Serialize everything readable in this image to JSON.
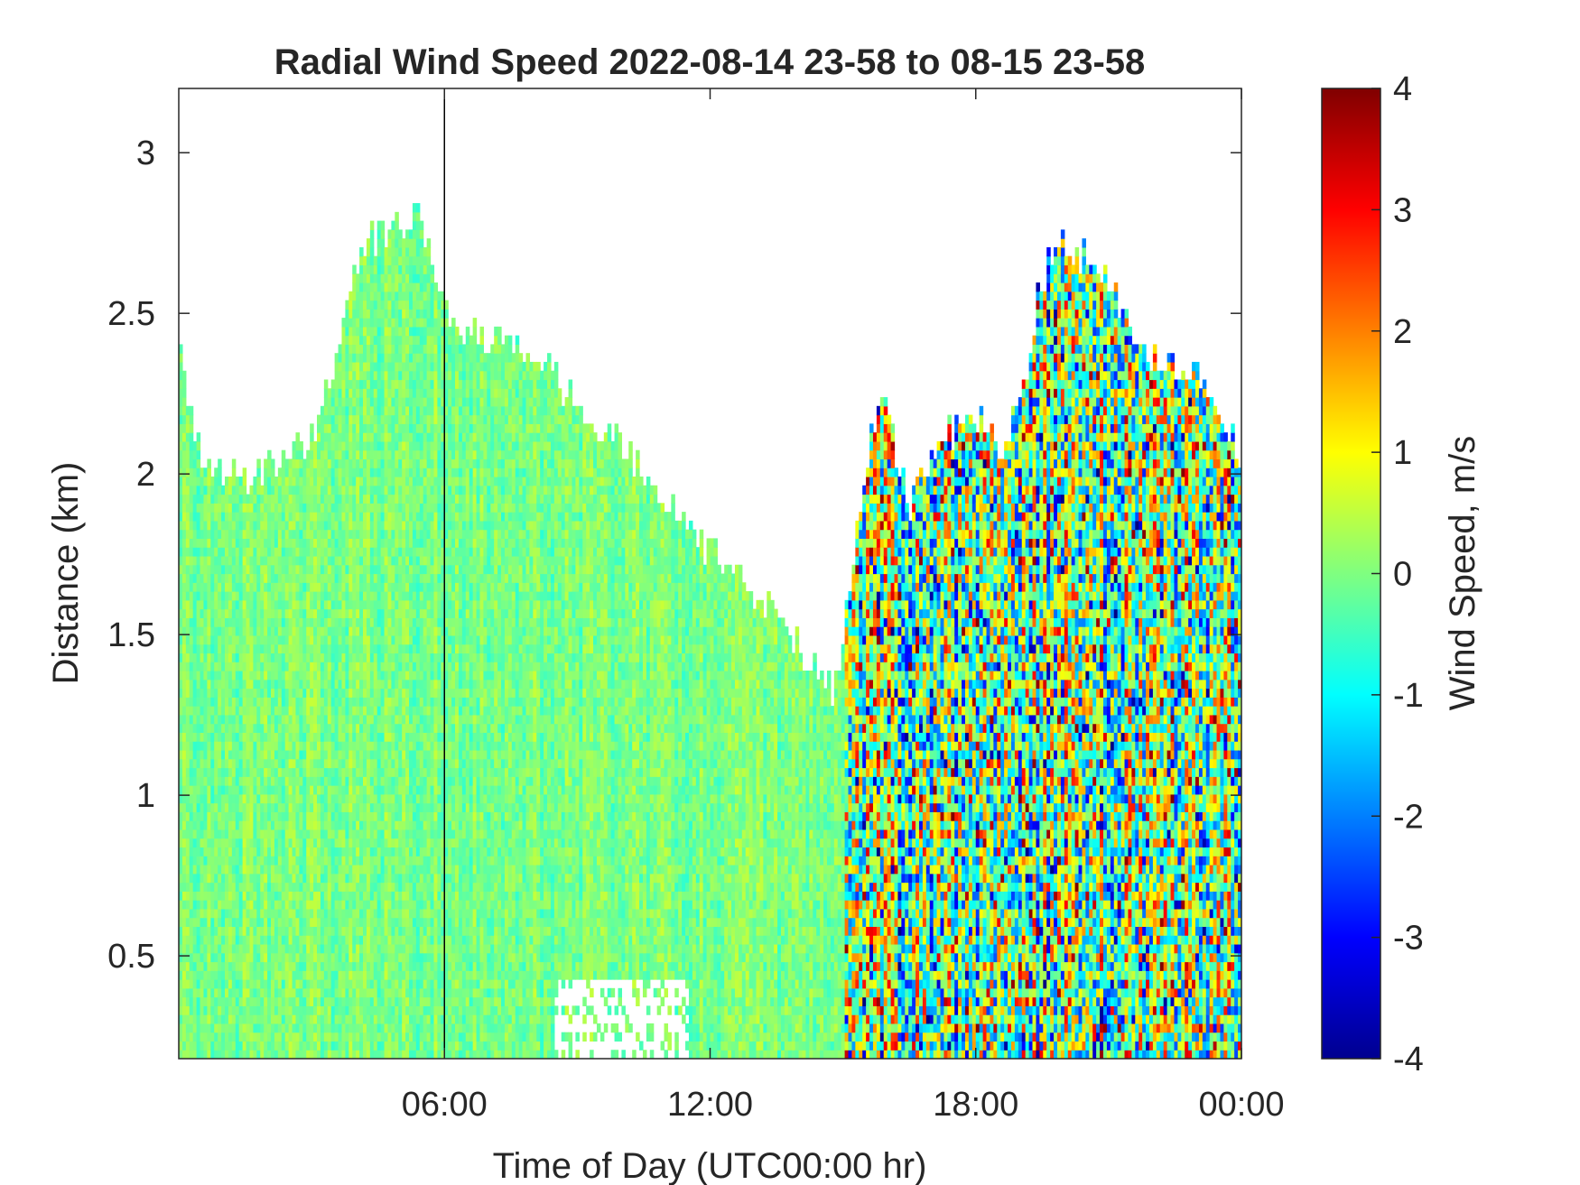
{
  "chart_data": {
    "type": "heatmap",
    "title": "Radial Wind Speed 2022-08-14 23-58 to 08-15 23-58",
    "xlabel": "Time of Day (UTC00:00 hr)",
    "ylabel": "Distance (km)",
    "xlim_hours": [
      0,
      24
    ],
    "ylim_km": [
      0.18,
      3.2
    ],
    "x_ticks": [
      {
        "value": 6,
        "label": "06:00"
      },
      {
        "value": 12,
        "label": "12:00"
      },
      {
        "value": 18,
        "label": "18:00"
      },
      {
        "value": 24,
        "label": "00:00"
      }
    ],
    "y_ticks": [
      {
        "value": 0.5,
        "label": "0.5"
      },
      {
        "value": 1,
        "label": "1"
      },
      {
        "value": 1.5,
        "label": "1.5"
      },
      {
        "value": 2,
        "label": "2"
      },
      {
        "value": 2.5,
        "label": "2.5"
      },
      {
        "value": 3,
        "label": "3"
      }
    ],
    "colorbar": {
      "label": "Wind Speed, m/s",
      "range": [
        -4,
        4
      ],
      "colormap": "jet",
      "ticks": [
        {
          "value": 4,
          "label": "4"
        },
        {
          "value": 3,
          "label": "3"
        },
        {
          "value": 2,
          "label": "2"
        },
        {
          "value": 1,
          "label": "1"
        },
        {
          "value": 0,
          "label": "0"
        },
        {
          "value": -1,
          "label": "-1"
        },
        {
          "value": -2,
          "label": "-2"
        },
        {
          "value": -3,
          "label": "-3"
        },
        {
          "value": -4,
          "label": "-4"
        }
      ]
    },
    "data_top_km": [
      {
        "hour": 0.0,
        "top": 2.4
      },
      {
        "hour": 0.5,
        "top": 2.05
      },
      {
        "hour": 1.0,
        "top": 2.0
      },
      {
        "hour": 1.5,
        "top": 1.98
      },
      {
        "hour": 2.0,
        "top": 2.02
      },
      {
        "hour": 3.0,
        "top": 2.1
      },
      {
        "hour": 3.6,
        "top": 2.4
      },
      {
        "hour": 4.0,
        "top": 2.65
      },
      {
        "hour": 4.5,
        "top": 2.75
      },
      {
        "hour": 5.5,
        "top": 2.8
      },
      {
        "hour": 6.0,
        "top": 2.5
      },
      {
        "hour": 6.5,
        "top": 2.45
      },
      {
        "hour": 7.5,
        "top": 2.4
      },
      {
        "hour": 8.5,
        "top": 2.3
      },
      {
        "hour": 9.5,
        "top": 2.15
      },
      {
        "hour": 10.5,
        "top": 2.0
      },
      {
        "hour": 11.3,
        "top": 1.85
      },
      {
        "hour": 12.5,
        "top": 1.7
      },
      {
        "hour": 13.5,
        "top": 1.55
      },
      {
        "hour": 14.3,
        "top": 1.4
      },
      {
        "hour": 14.8,
        "top": 1.3
      },
      {
        "hour": 15.3,
        "top": 1.8
      },
      {
        "hour": 15.8,
        "top": 2.25
      },
      {
        "hour": 16.5,
        "top": 1.9
      },
      {
        "hour": 17.2,
        "top": 2.1
      },
      {
        "hour": 18.0,
        "top": 2.2
      },
      {
        "hour": 18.7,
        "top": 2.05
      },
      {
        "hour": 19.5,
        "top": 2.6
      },
      {
        "hour": 20.0,
        "top": 2.72
      },
      {
        "hour": 21.0,
        "top": 2.6
      },
      {
        "hour": 22.0,
        "top": 2.35
      },
      {
        "hour": 23.0,
        "top": 2.3
      },
      {
        "hour": 24.0,
        "top": 2.05
      }
    ],
    "low_level_gap": {
      "hours": [
        8.5,
        11.5
      ],
      "below_km": 0.42
    },
    "vertical_line_hour": 6,
    "wind_regimes": [
      {
        "hours": [
          0,
          15
        ],
        "typical_ms": [
          -0.8,
          0.6
        ]
      },
      {
        "hours": [
          15,
          24
        ],
        "typical_ms": [
          -3.5,
          3.8
        ]
      }
    ]
  }
}
